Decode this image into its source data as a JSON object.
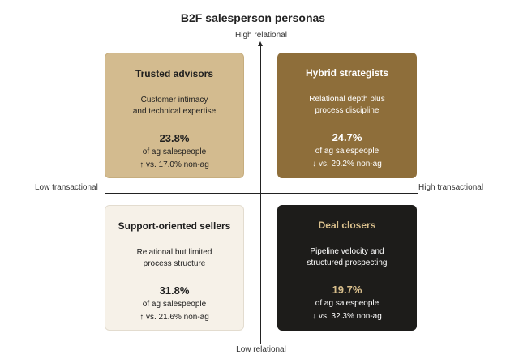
{
  "title": "B2F salesperson personas",
  "axes": {
    "top": "High relational",
    "bottom": "Low relational",
    "left": "Low transactional",
    "right": "High transactional"
  },
  "quadrants": [
    {
      "name": "Trusted advisors",
      "desc_line1": "Customer intimacy",
      "desc_line2": "and technical expertise",
      "pct": "23.8%",
      "sub": "of ag salespeople",
      "cmp": "↑ vs. 17.0% non-ag"
    },
    {
      "name": "Hybrid strategists",
      "desc_line1": "Relational depth plus",
      "desc_line2": "process discipline",
      "pct": "24.7%",
      "sub": "of ag salespeople",
      "cmp": "↓ vs. 29.2% non-ag"
    },
    {
      "name": "Support-oriented sellers",
      "desc_line1": "Relational but limited",
      "desc_line2": "process structure",
      "pct": "31.8%",
      "sub": "of ag salespeople",
      "cmp": "↑ vs. 21.6% non-ag"
    },
    {
      "name": "Deal closers",
      "desc_line1": "Pipeline velocity and",
      "desc_line2": "structured prospecting",
      "pct": "19.7%",
      "sub": "of ag salespeople",
      "cmp": "↓ vs. 32.3% non-ag"
    }
  ],
  "colors": {
    "trusted_advisors": "#d3bb8f",
    "hybrid_strategists": "#8e6e3a",
    "support_oriented": "#f6f1e8",
    "deal_closers": "#1d1c1a",
    "accent_gold": "#d9bf8c"
  }
}
